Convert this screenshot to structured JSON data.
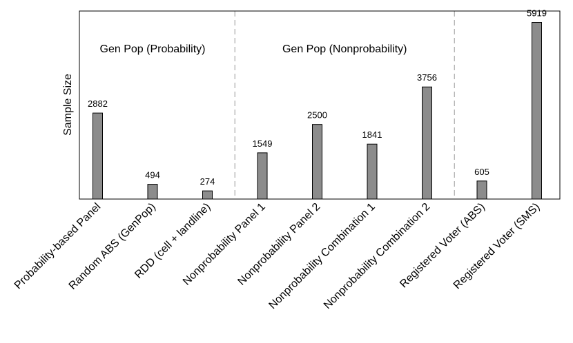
{
  "chart_data": {
    "type": "bar",
    "title": "",
    "xlabel": "",
    "ylabel": "Sample Size",
    "ylim": [
      0,
      6300
    ],
    "grid": false,
    "legend": "none",
    "bar_color": "#8c8c8c",
    "bar_edge_color": "#000000",
    "separator_color": "#aaaaaa",
    "categories": [
      "Probability-based Panel",
      "Random ABS (GenPop)",
      "RDD (cell + landline)",
      "Nonprobability Panel 1",
      "Nonprobability Panel 2",
      "Nonprobability Combination 1",
      "Nonprobability Combination 2",
      "Registered Voter (ABS)",
      "Registered Voter (SMS)"
    ],
    "values": [
      2882,
      494,
      274,
      1549,
      2500,
      1841,
      3756,
      605,
      5919
    ],
    "value_labels": [
      "2882",
      "494",
      "274",
      "1549",
      "2500",
      "1841",
      "3756",
      "605",
      "5919"
    ],
    "groups": [
      {
        "label": "Gen Pop (Probability)",
        "start": 0,
        "end": 2
      },
      {
        "label": "Gen Pop (Nonprobability)",
        "start": 3,
        "end": 6
      },
      {
        "label": "",
        "start": 7,
        "end": 8
      }
    ]
  }
}
